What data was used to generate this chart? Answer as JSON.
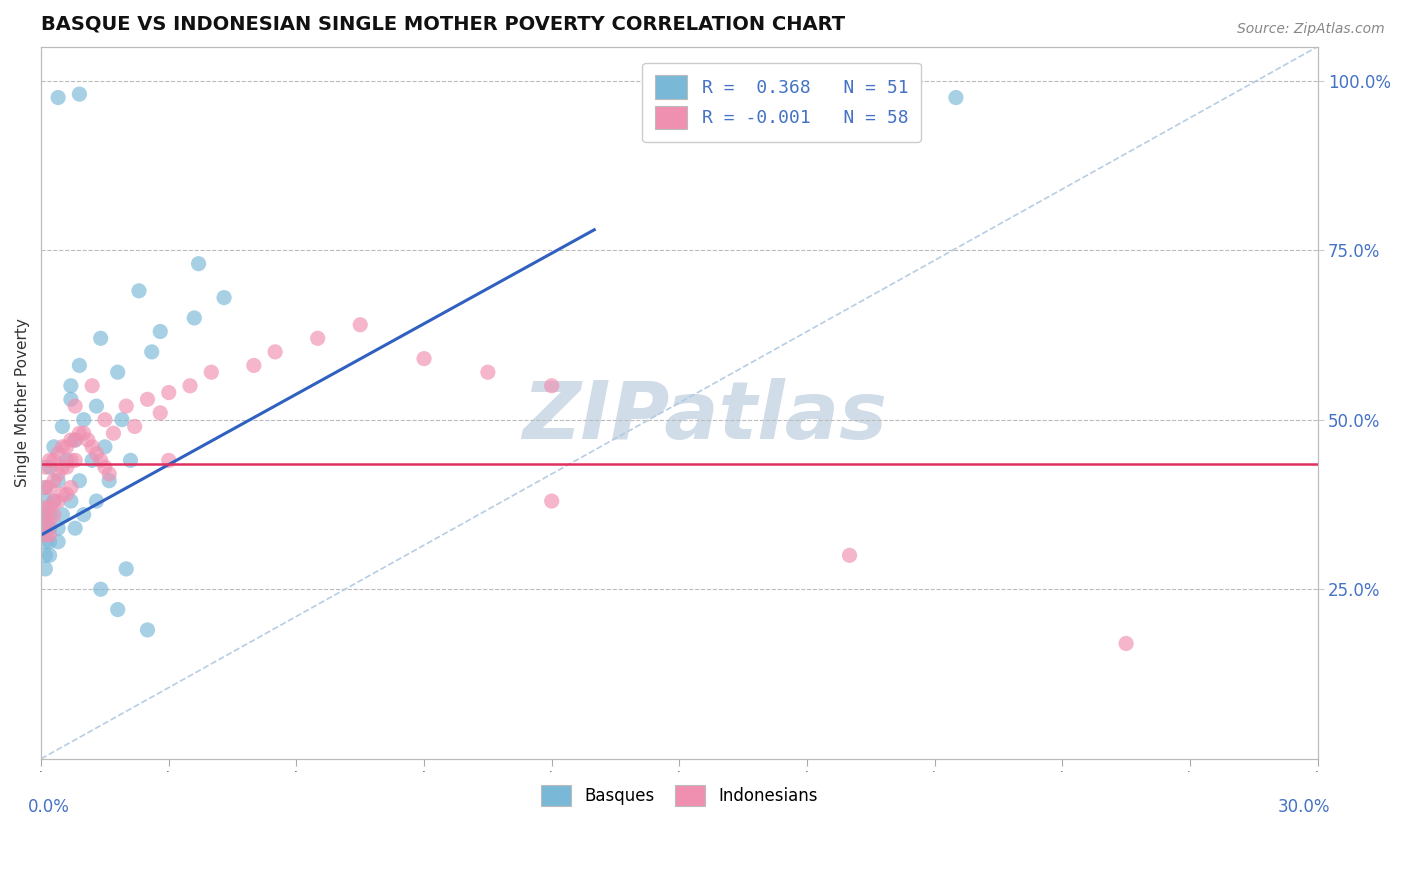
{
  "title": "BASQUE VS INDONESIAN SINGLE MOTHER POVERTY CORRELATION CHART",
  "source_text": "Source: ZipAtlas.com",
  "ylabel": "Single Mother Poverty",
  "ylabel_right_ticks": [
    "100.0%",
    "75.0%",
    "50.0%",
    "25.0%"
  ],
  "ylabel_right_values": [
    1.0,
    0.75,
    0.5,
    0.25
  ],
  "xmin": 0.0,
  "xmax": 0.3,
  "ymin": 0.0,
  "ymax": 1.05,
  "legend_entries": [
    {
      "label": "R =  0.368   N = 51",
      "color": "#a8c8e8"
    },
    {
      "label": "R = -0.001   N = 58",
      "color": "#f4b8c8"
    }
  ],
  "basque_color": "#7ab8d8",
  "indonesian_color": "#f090b0",
  "regression_basque_color": "#3060c0",
  "regression_indo_color": "#e03060",
  "diagonal_color": "#b0c8e0",
  "watermark_color": "#d0dce8",
  "basque_points": [
    [
      0.004,
      0.975
    ],
    [
      0.009,
      0.98
    ],
    [
      0.215,
      0.975
    ],
    [
      0.023,
      0.69
    ],
    [
      0.037,
      0.73
    ],
    [
      0.014,
      0.62
    ],
    [
      0.028,
      0.63
    ],
    [
      0.009,
      0.58
    ],
    [
      0.018,
      0.57
    ],
    [
      0.007,
      0.53
    ],
    [
      0.013,
      0.52
    ],
    [
      0.005,
      0.49
    ],
    [
      0.01,
      0.5
    ],
    [
      0.019,
      0.5
    ],
    [
      0.003,
      0.46
    ],
    [
      0.008,
      0.47
    ],
    [
      0.015,
      0.46
    ],
    [
      0.002,
      0.43
    ],
    [
      0.006,
      0.44
    ],
    [
      0.012,
      0.44
    ],
    [
      0.021,
      0.44
    ],
    [
      0.001,
      0.4
    ],
    [
      0.004,
      0.41
    ],
    [
      0.009,
      0.41
    ],
    [
      0.016,
      0.41
    ],
    [
      0.001,
      0.38
    ],
    [
      0.003,
      0.38
    ],
    [
      0.007,
      0.38
    ],
    [
      0.013,
      0.38
    ],
    [
      0.001,
      0.36
    ],
    [
      0.002,
      0.36
    ],
    [
      0.005,
      0.36
    ],
    [
      0.01,
      0.36
    ],
    [
      0.001,
      0.34
    ],
    [
      0.002,
      0.34
    ],
    [
      0.004,
      0.34
    ],
    [
      0.008,
      0.34
    ],
    [
      0.001,
      0.32
    ],
    [
      0.002,
      0.32
    ],
    [
      0.004,
      0.32
    ],
    [
      0.001,
      0.3
    ],
    [
      0.002,
      0.3
    ],
    [
      0.001,
      0.28
    ],
    [
      0.02,
      0.28
    ],
    [
      0.014,
      0.25
    ],
    [
      0.018,
      0.22
    ],
    [
      0.025,
      0.19
    ],
    [
      0.007,
      0.55
    ],
    [
      0.036,
      0.65
    ],
    [
      0.026,
      0.6
    ],
    [
      0.043,
      0.68
    ]
  ],
  "indonesian_points": [
    [
      0.001,
      0.43
    ],
    [
      0.002,
      0.44
    ],
    [
      0.003,
      0.44
    ],
    [
      0.004,
      0.45
    ],
    [
      0.005,
      0.46
    ],
    [
      0.006,
      0.46
    ],
    [
      0.007,
      0.47
    ],
    [
      0.008,
      0.47
    ],
    [
      0.009,
      0.48
    ],
    [
      0.01,
      0.48
    ],
    [
      0.011,
      0.47
    ],
    [
      0.012,
      0.46
    ],
    [
      0.013,
      0.45
    ],
    [
      0.014,
      0.44
    ],
    [
      0.015,
      0.43
    ],
    [
      0.016,
      0.42
    ],
    [
      0.001,
      0.4
    ],
    [
      0.002,
      0.4
    ],
    [
      0.003,
      0.41
    ],
    [
      0.004,
      0.42
    ],
    [
      0.005,
      0.43
    ],
    [
      0.006,
      0.43
    ],
    [
      0.007,
      0.44
    ],
    [
      0.008,
      0.44
    ],
    [
      0.001,
      0.37
    ],
    [
      0.002,
      0.37
    ],
    [
      0.003,
      0.38
    ],
    [
      0.004,
      0.38
    ],
    [
      0.005,
      0.39
    ],
    [
      0.006,
      0.39
    ],
    [
      0.007,
      0.4
    ],
    [
      0.001,
      0.35
    ],
    [
      0.002,
      0.35
    ],
    [
      0.003,
      0.36
    ],
    [
      0.001,
      0.33
    ],
    [
      0.002,
      0.33
    ],
    [
      0.015,
      0.5
    ],
    [
      0.02,
      0.52
    ],
    [
      0.025,
      0.53
    ],
    [
      0.028,
      0.51
    ],
    [
      0.017,
      0.48
    ],
    [
      0.022,
      0.49
    ],
    [
      0.03,
      0.54
    ],
    [
      0.035,
      0.55
    ],
    [
      0.04,
      0.57
    ],
    [
      0.05,
      0.58
    ],
    [
      0.055,
      0.6
    ],
    [
      0.065,
      0.62
    ],
    [
      0.075,
      0.64
    ],
    [
      0.09,
      0.59
    ],
    [
      0.105,
      0.57
    ],
    [
      0.12,
      0.55
    ],
    [
      0.008,
      0.52
    ],
    [
      0.012,
      0.55
    ],
    [
      0.12,
      0.38
    ],
    [
      0.19,
      0.3
    ],
    [
      0.255,
      0.17
    ],
    [
      0.03,
      0.44
    ]
  ]
}
